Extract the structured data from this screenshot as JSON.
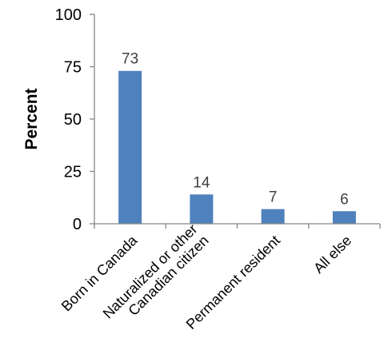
{
  "chart_data": {
    "type": "bar",
    "title": "",
    "xlabel": "",
    "ylabel": "Percent",
    "ylim": [
      0,
      100
    ],
    "yticks": [
      0,
      25,
      50,
      75,
      100
    ],
    "grid": false,
    "legend": "none",
    "categories": [
      [
        "Born in Canada"
      ],
      [
        "Naturalized or other",
        "Canadian citizen"
      ],
      [
        "Permanent resident"
      ],
      [
        "All else"
      ]
    ],
    "values": [
      73,
      14,
      7,
      6
    ],
    "data_labels": [
      "73",
      "14",
      "7",
      "6"
    ],
    "bar_color": "#4f81bd",
    "axis_color": "#868686"
  }
}
